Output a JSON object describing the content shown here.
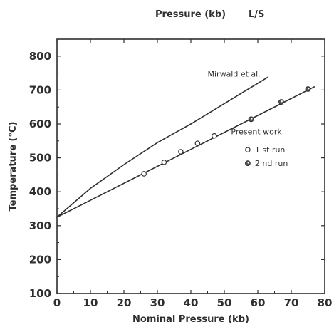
{
  "chart_data": {
    "type": "line",
    "title": "Pressure (kb)",
    "title_right": "L/S",
    "xlabel": "Nominal Pressure (kb)",
    "ylabel": "Temperature (°C)",
    "xlim": [
      0,
      80
    ],
    "ylim": [
      100,
      850
    ],
    "xticks": [
      "0",
      "10",
      "20",
      "30",
      "40",
      "50",
      "60",
      "70",
      "80"
    ],
    "xtick_values": [
      0,
      10,
      20,
      30,
      40,
      50,
      60,
      70,
      80
    ],
    "yticks": [
      "100",
      "200",
      "300",
      "400",
      "500",
      "600",
      "700",
      "800"
    ],
    "ytick_values": [
      100,
      200,
      300,
      400,
      500,
      600,
      700,
      800
    ],
    "grid": false,
    "series": [
      {
        "name": "Mirwald et al.",
        "kind": "curve",
        "color": "#2f2f2f",
        "x": [
          0,
          10,
          20,
          30,
          40,
          50,
          60,
          63
        ],
        "y": [
          325,
          410,
          480,
          545,
          600,
          660,
          720,
          738
        ]
      },
      {
        "name": "Present work",
        "kind": "line",
        "color": "#2f2f2f",
        "x": [
          0,
          77
        ],
        "y": [
          325,
          710
        ]
      },
      {
        "name": "1 st run",
        "kind": "points",
        "marker": "open-circle",
        "x": [
          26,
          32,
          37,
          42,
          47
        ],
        "y": [
          453,
          487,
          518,
          543,
          565
        ]
      },
      {
        "name": "2 nd run",
        "kind": "points",
        "marker": "half-filled-circle",
        "x": [
          58,
          67,
          75
        ],
        "y": [
          614,
          665,
          703
        ]
      }
    ],
    "annotations": [
      {
        "text": "Mirwald et al.",
        "x": 45,
        "y": 740
      },
      {
        "text": "Present work",
        "x": 52,
        "y": 570
      }
    ],
    "legend": {
      "placement": "right",
      "items": [
        {
          "label": "1 st run",
          "marker": "open-circle"
        },
        {
          "label": "2 nd run",
          "marker": "half-filled-circle"
        }
      ]
    }
  }
}
